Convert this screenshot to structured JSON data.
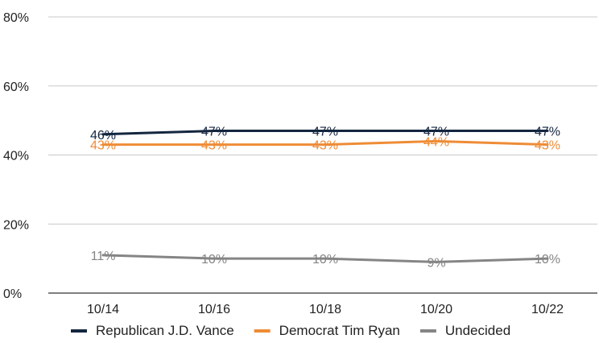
{
  "chart_data": {
    "type": "line",
    "categories": [
      "10/14",
      "10/16",
      "10/18",
      "10/20",
      "10/22"
    ],
    "y_ticks": [
      "0%",
      "20%",
      "40%",
      "60%",
      "80%"
    ],
    "y_tick_values": [
      0,
      20,
      40,
      60,
      80
    ],
    "ylim": [
      0,
      80
    ],
    "grid": true,
    "legend_position": "bottom",
    "series": [
      {
        "name": "Republican J.D. Vance",
        "color": "#14263f",
        "values": [
          46,
          47,
          47,
          47,
          47
        ],
        "labels": [
          "46%",
          "47%",
          "47%",
          "47%",
          "47%"
        ]
      },
      {
        "name": "Democrat Tim Ryan",
        "color": "#ee8c36",
        "values": [
          43,
          43,
          43,
          44,
          43
        ],
        "labels": [
          "43%",
          "43%",
          "43%",
          "44%",
          "43%"
        ]
      },
      {
        "name": "Undecided",
        "color": "#858585",
        "values": [
          11,
          10,
          10,
          9,
          10
        ],
        "labels": [
          "11%",
          "10%",
          "10%",
          "9%",
          "10%"
        ]
      }
    ]
  }
}
